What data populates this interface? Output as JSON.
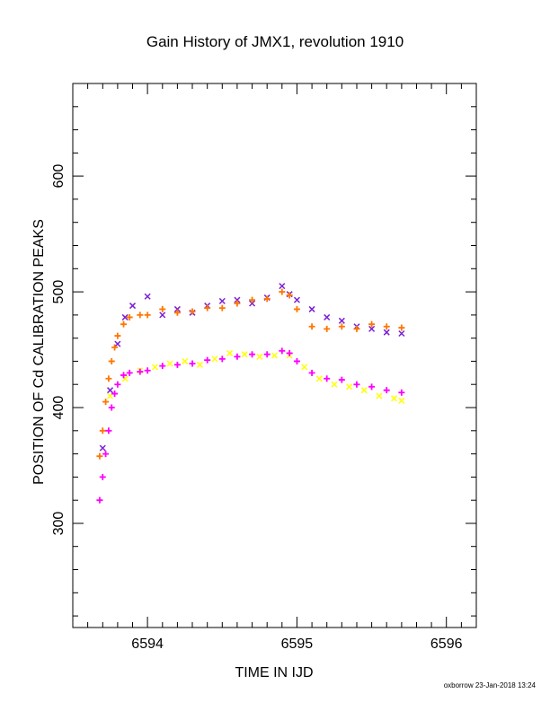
{
  "title": "Gain History of JMX1, revolution 1910",
  "footer": "oxborrow 23-Jan-2018 13:24",
  "chart_data": {
    "type": "scatter",
    "title": "Gain History of JMX1, revolution 1910",
    "xlabel": "TIME IN IJD",
    "ylabel": "POSITION OF Cd CALIBRATION PEAKS",
    "xlim": [
      6593.5,
      6596.2
    ],
    "ylim": [
      210,
      680
    ],
    "xticks": [
      6594,
      6595,
      6596
    ],
    "xtick_labels": [
      "6594",
      "6595",
      "6596"
    ],
    "yticks": [
      300,
      400,
      500,
      600
    ],
    "ytick_labels": [
      "300",
      "400",
      "500",
      "600"
    ],
    "grid": false,
    "series": [
      {
        "marker": "x",
        "color": "#7b1fd6",
        "x": [
          6593.7,
          6593.75,
          6593.8,
          6593.85,
          6593.9,
          6594.0,
          6594.1,
          6594.2,
          6594.3,
          6594.4,
          6594.5,
          6594.6,
          6594.7,
          6594.8,
          6594.9,
          6594.95,
          6595.0,
          6595.1,
          6595.2,
          6595.3,
          6595.4,
          6595.5,
          6595.6,
          6595.7
        ],
        "y": [
          365,
          415,
          455,
          478,
          488,
          496,
          480,
          485,
          482,
          488,
          492,
          493,
          490,
          495,
          505,
          498,
          493,
          485,
          478,
          475,
          470,
          468,
          465,
          464
        ]
      },
      {
        "marker": "+",
        "color": "#ff7700",
        "x": [
          6593.68,
          6593.7,
          6593.72,
          6593.74,
          6593.76,
          6593.78,
          6593.8,
          6593.84,
          6593.88,
          6593.95,
          6594.0,
          6594.1,
          6594.2,
          6594.3,
          6594.4,
          6594.5,
          6594.6,
          6594.7,
          6594.8,
          6594.9,
          6594.95,
          6595.0,
          6595.1,
          6595.2,
          6595.3,
          6595.4,
          6595.5,
          6595.6,
          6595.7
        ],
        "y": [
          358,
          380,
          405,
          425,
          440,
          452,
          462,
          472,
          478,
          480,
          480,
          485,
          482,
          483,
          486,
          486,
          490,
          493,
          494,
          500,
          497,
          485,
          470,
          468,
          470,
          468,
          472,
          470,
          469
        ]
      },
      {
        "marker": "x",
        "color": "#ffff00",
        "x": [
          6593.75,
          6593.85,
          6593.95,
          6594.05,
          6594.15,
          6594.25,
          6594.35,
          6594.45,
          6594.55,
          6594.65,
          6594.75,
          6594.85,
          6594.95,
          6595.05,
          6595.15,
          6595.25,
          6595.35,
          6595.45,
          6595.55,
          6595.65,
          6595.7
        ],
        "y": [
          410,
          425,
          432,
          435,
          438,
          440,
          437,
          442,
          447,
          446,
          444,
          445,
          445,
          435,
          425,
          420,
          418,
          415,
          410,
          408,
          406
        ]
      },
      {
        "marker": "+",
        "color": "#ff00ff",
        "x": [
          6593.68,
          6593.7,
          6593.72,
          6593.74,
          6593.76,
          6593.78,
          6593.8,
          6593.84,
          6593.88,
          6593.95,
          6594.0,
          6594.1,
          6594.2,
          6594.3,
          6594.4,
          6594.5,
          6594.6,
          6594.7,
          6594.8,
          6594.9,
          6594.95,
          6595.0,
          6595.1,
          6595.2,
          6595.3,
          6595.4,
          6595.5,
          6595.6,
          6595.7
        ],
        "y": [
          320,
          340,
          360,
          380,
          400,
          412,
          420,
          428,
          430,
          431,
          432,
          436,
          437,
          438,
          441,
          442,
          444,
          446,
          446,
          449,
          447,
          440,
          430,
          425,
          424,
          420,
          418,
          415,
          413
        ]
      }
    ]
  }
}
